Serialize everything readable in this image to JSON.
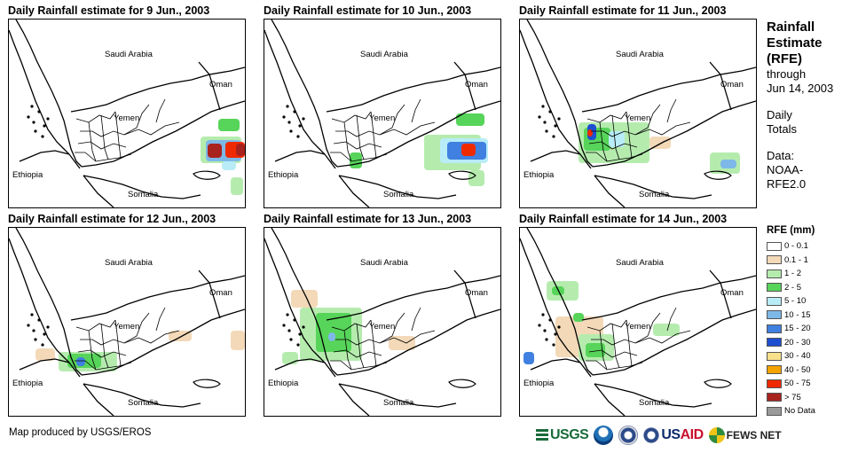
{
  "panels": [
    {
      "title": "Daily Rainfall estimate for 9 Jun., 2003",
      "day": "9"
    },
    {
      "title": "Daily Rainfall estimate for 10 Jun., 2003",
      "day": "10"
    },
    {
      "title": "Daily Rainfall estimate for 11 Jun., 2003",
      "day": "11"
    },
    {
      "title": "Daily Rainfall estimate for 12 Jun., 2003",
      "day": "12"
    },
    {
      "title": "Daily Rainfall estimate for 13 Jun., 2003",
      "day": "13"
    },
    {
      "title": "Daily Rainfall estimate for 14 Jun., 2003",
      "day": "14"
    }
  ],
  "map_labels": {
    "saudi": "Saudi Arabia",
    "oman": "Oman",
    "yemen": "Yemen",
    "ethiopia": "Ethiopia",
    "somalia": "Somalia"
  },
  "sidebar": {
    "title_line1": "Rainfall",
    "title_line2": "Estimate",
    "title_line3": "(RFE)",
    "through": "through",
    "date": "Jun 14, 2003",
    "daily": "Daily",
    "totals": "Totals",
    "data_label": "Data:",
    "data_src1": "NOAA-",
    "data_src2": "RFE2.0"
  },
  "legend": {
    "title": "RFE (mm)",
    "items": [
      {
        "label": "0 - 0.1",
        "color": "#ffffff"
      },
      {
        "label": "0.1 - 1",
        "color": "#f3d9b8"
      },
      {
        "label": "1 - 2",
        "color": "#b5ecae"
      },
      {
        "label": "2 - 5",
        "color": "#57d45a"
      },
      {
        "label": "5 - 10",
        "color": "#b8ecf7"
      },
      {
        "label": "10 - 15",
        "color": "#7eb8e8"
      },
      {
        "label": "15 - 20",
        "color": "#3f80e0"
      },
      {
        "label": "20 - 30",
        "color": "#1e4fd0"
      },
      {
        "label": "30 - 40",
        "color": "#f7e08a"
      },
      {
        "label": "40 - 50",
        "color": "#f5a300"
      },
      {
        "label": "50 - 75",
        "color": "#ef2a00"
      },
      {
        "label": "> 75",
        "color": "#a8221e"
      },
      {
        "label": "No Data",
        "color": "#9a9a9a"
      }
    ]
  },
  "credit": "Map produced by USGS/EROS",
  "logos": {
    "usgs": "USGS",
    "usaid_us": "US",
    "usaid_aid": "AID",
    "fews": "FEWS NET"
  }
}
